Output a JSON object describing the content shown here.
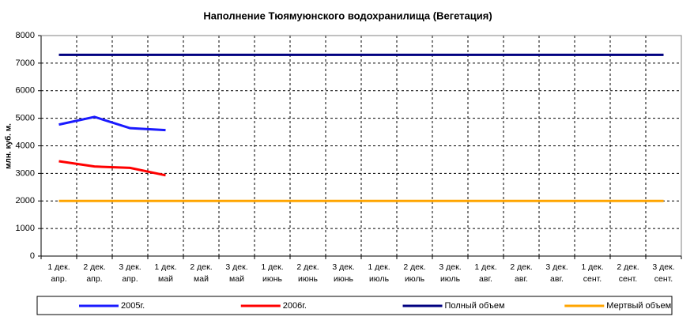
{
  "chart_data": {
    "type": "line",
    "title": "Наполнение Тюямуюнского водохранилища (Вегетация)",
    "y_label": "млн. куб. м.",
    "categories": [
      "1 дек.\nапр.",
      "2 дек.\nапр.",
      "3 дек.\nапр.",
      "1 дек.\nмай",
      "2 дек.\nмай",
      "3 дек.\nмай",
      "1 дек.\nиюнь",
      "2 дек.\nиюнь",
      "3 дек.\nиюнь",
      "1 дек.\nиюль",
      "2 дек.\nиюль",
      "3 дек.\nиюль",
      "1 дек.\nавг.",
      "2 дек.\nавг.",
      "3 дек.\nавг.",
      "1 дек.\nсент.",
      "2 дек.\nсент.",
      "3 дек.\nсент."
    ],
    "series": [
      {
        "name": "2005г.",
        "color": "#1a1aff",
        "values": [
          4770,
          5050,
          4640,
          4570,
          null,
          null,
          null,
          null,
          null,
          null,
          null,
          null,
          null,
          null,
          null,
          null,
          null,
          null
        ]
      },
      {
        "name": "2006г.",
        "color": "#ff0000",
        "values": [
          3440,
          3250,
          3200,
          2930,
          null,
          null,
          null,
          null,
          null,
          null,
          null,
          null,
          null,
          null,
          null,
          null,
          null,
          null
        ]
      },
      {
        "name": "Полный объем",
        "color": "#000080",
        "values": [
          7300,
          7300,
          7300,
          7300,
          7300,
          7300,
          7300,
          7300,
          7300,
          7300,
          7300,
          7300,
          7300,
          7300,
          7300,
          7300,
          7300,
          7300
        ]
      },
      {
        "name": "Мертвый объем",
        "color": "#ffa500",
        "values": [
          2000,
          2000,
          2000,
          2000,
          2000,
          2000,
          2000,
          2000,
          2000,
          2000,
          2000,
          2000,
          2000,
          2000,
          2000,
          2000,
          2000,
          2000
        ]
      }
    ],
    "ylim": [
      0,
      8000
    ],
    "yticks": [
      0,
      1000,
      2000,
      3000,
      4000,
      5000,
      6000,
      7000,
      8000
    ],
    "grid": true,
    "legend": "bottom"
  }
}
